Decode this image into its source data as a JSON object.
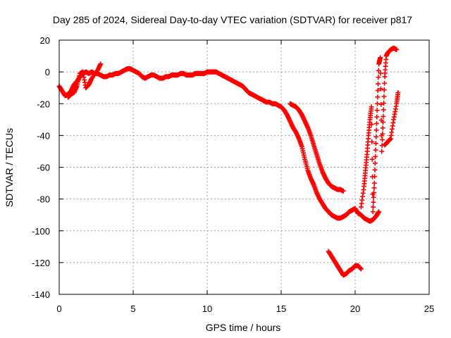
{
  "chart_data": {
    "type": "scatter",
    "title": "Day 285 of 2024, Sidereal Day-to-day VTEC variation (SDTVAR) for receiver p817",
    "xlabel": "GPS time / hours",
    "ylabel": "SDTVAR / TECUs",
    "xlim": [
      0,
      25
    ],
    "ylim": [
      -140,
      20
    ],
    "xticks": [
      0,
      5,
      10,
      15,
      20,
      25
    ],
    "xtick_labels": [
      "0",
      "5",
      "10",
      "15",
      "20",
      "25"
    ],
    "yticks": [
      -140,
      -120,
      -100,
      -80,
      -60,
      -40,
      -20,
      0,
      20
    ],
    "ytick_labels": [
      "-140",
      "-120",
      "-100",
      "-80",
      "-60",
      "-40",
      "-20",
      "0",
      "20"
    ],
    "grid": true,
    "marker": "+",
    "colors": {
      "series": "#ff0000",
      "grid": "#a0a0a0",
      "axis": "#000000",
      "background": "#ffffff"
    },
    "series": [
      {
        "name": "main",
        "x": [
          0,
          0.2,
          0.4,
          0.6,
          0.8,
          1.0,
          1.2,
          1.4,
          1.6,
          1.8,
          2.0,
          2.2,
          2.4,
          2.6,
          2.8,
          3.0,
          3.2,
          3.4,
          3.6,
          3.8,
          4.0,
          4.2,
          4.4,
          4.6,
          4.8,
          5.0,
          5.2,
          5.4,
          5.6,
          5.8,
          6.0,
          6.2,
          6.4,
          6.6,
          6.8,
          7.0,
          7.2,
          7.4,
          7.6,
          7.8,
          8.0,
          8.2,
          8.4,
          8.6,
          8.8,
          9.0,
          9.2,
          9.4,
          9.6,
          9.8,
          10.0,
          10.2,
          10.4,
          10.6,
          10.8,
          11.0,
          11.2,
          11.4,
          11.6,
          11.8,
          12.0,
          12.2,
          12.4,
          12.6,
          12.8,
          13.0,
          13.2,
          13.4,
          13.6,
          13.8,
          14.0,
          14.2,
          14.4,
          14.6,
          14.8,
          15.0,
          15.2,
          15.4,
          15.6,
          15.8,
          16.0,
          16.2,
          16.4,
          16.6,
          16.8,
          17.0,
          17.2,
          17.4,
          17.6,
          17.8,
          18.0,
          18.2,
          18.4,
          18.6,
          18.8,
          19.0,
          19.2,
          19.4,
          19.6,
          19.8,
          20.0,
          20.2,
          20.4,
          20.6,
          20.8,
          21.0,
          21.2,
          21.4,
          21.6
        ],
        "y": [
          -9,
          -12,
          -15,
          -14,
          -12,
          -8,
          -6,
          -3,
          -1,
          0,
          -1,
          0,
          -1,
          -1,
          -2,
          -3,
          -3,
          -2,
          -2,
          -1,
          -1,
          0,
          1,
          2,
          2,
          1,
          0,
          -1,
          -3,
          -4,
          -3,
          -2,
          -2,
          -3,
          -4,
          -4,
          -3,
          -3,
          -2,
          -2,
          -2,
          -1,
          -1,
          -2,
          -2,
          -2,
          -1,
          -1,
          -1,
          -1,
          0,
          0,
          0,
          0,
          -1,
          -2,
          -3,
          -4,
          -5,
          -6,
          -7,
          -8,
          -9,
          -11,
          -13,
          -14,
          -15,
          -16,
          -17,
          -18,
          -19,
          -19,
          -20,
          -20,
          -21,
          -22,
          -24,
          -27,
          -31,
          -35,
          -38,
          -42,
          -47,
          -55,
          -62,
          -67,
          -71,
          -76,
          -80,
          -83,
          -86,
          -88,
          -90,
          -91,
          -92,
          -92,
          -91,
          -90,
          -88,
          -87,
          -86,
          -89,
          -90,
          -92,
          -93,
          -94,
          -93,
          -91,
          -88
        ]
      },
      {
        "name": "upper-band",
        "x": [
          15.6,
          15.8,
          16.0,
          16.2,
          16.4,
          16.6,
          16.8,
          17.0,
          17.2,
          17.4,
          17.6,
          17.8,
          18.0,
          18.2,
          18.4,
          18.6,
          18.8,
          19.0,
          19.2
        ],
        "y": [
          -20,
          -21,
          -22,
          -24,
          -27,
          -31,
          -35,
          -40,
          -46,
          -52,
          -58,
          -63,
          -67,
          -70,
          -72,
          -73,
          -74,
          -74,
          -75
        ]
      },
      {
        "name": "early-offset",
        "x": [
          0.6,
          0.8,
          1.0,
          1.2,
          1.4,
          1.6,
          1.8,
          2.0,
          2.2,
          2.6,
          2.8
        ],
        "y": [
          -16,
          -14,
          -13,
          -9,
          -1,
          0,
          -10,
          -8,
          -4,
          1,
          5
        ]
      },
      {
        "name": "late-rise-1",
        "x": [
          20.4,
          20.6,
          20.7,
          20.8,
          20.9,
          21.0,
          21.1,
          21.2,
          21.3,
          21.4,
          21.5,
          21.6,
          21.7,
          21.8,
          21.9,
          22.0,
          22.1,
          22.2,
          22.4,
          22.6,
          22.8
        ],
        "y": [
          -85,
          -72,
          -62,
          -52,
          -40,
          -30,
          -22,
          -88,
          -70,
          -45,
          -20,
          5,
          9,
          -50,
          -28,
          -3,
          10,
          12,
          14,
          15,
          14
        ]
      },
      {
        "name": "late-rise-2",
        "x": [
          22.0,
          22.2,
          22.4,
          22.6,
          22.8,
          22.9
        ],
        "y": [
          -46,
          -44,
          -42,
          -30,
          -20,
          -13
        ]
      },
      {
        "name": "low-branch",
        "x": [
          18.2,
          18.4,
          18.6,
          18.8,
          19.0,
          19.2,
          19.4,
          19.6,
          19.8,
          20.0,
          20.2,
          20.4
        ],
        "y": [
          -113,
          -116,
          -119,
          -122,
          -125,
          -128,
          -127,
          -125,
          -124,
          -122,
          -122,
          -124
        ]
      }
    ]
  }
}
